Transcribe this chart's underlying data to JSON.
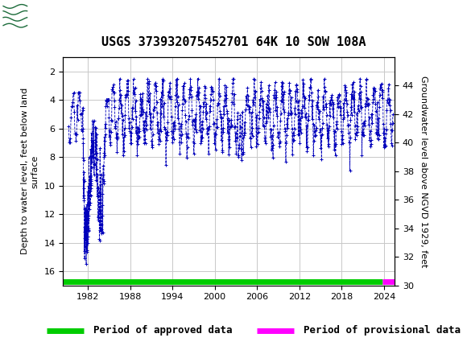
{
  "title": "USGS 373932075452701 64K 10 SOW 108A",
  "ylabel_left": "Depth to water level, feet below land\nsurface",
  "ylabel_right": "Groundwater level above NGVD 1929, feet",
  "xlim": [
    1978.5,
    2025.5
  ],
  "ylim_left": [
    17,
    1
  ],
  "ylim_right": [
    30,
    46
  ],
  "yticks_left": [
    2,
    4,
    6,
    8,
    10,
    12,
    14,
    16
  ],
  "yticks_right": [
    30,
    32,
    34,
    36,
    38,
    40,
    42,
    44
  ],
  "xticks": [
    1982,
    1988,
    1994,
    2000,
    2006,
    2012,
    2018,
    2024
  ],
  "header_color": "#1b6b3a",
  "dot_color": "#0000bb",
  "approved_color": "#00cc00",
  "provisional_color": "#ff00ff",
  "background_color": "#ffffff",
  "grid_color": "#c8c8c8",
  "title_fontsize": 11,
  "axis_label_fontsize": 8,
  "tick_fontsize": 8,
  "legend_fontsize": 9
}
